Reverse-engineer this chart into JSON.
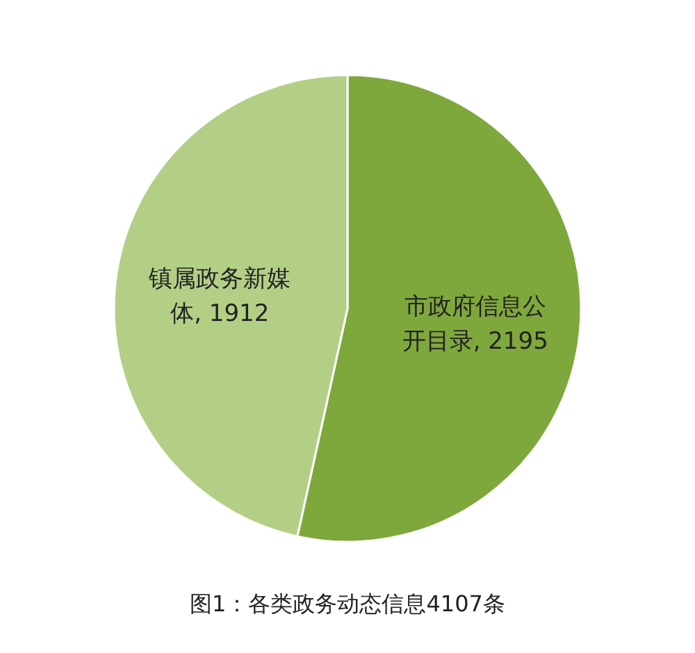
{
  "chart_data": {
    "type": "pie",
    "title": "图1：各类政务动态信息4107条",
    "categories": [
      "市政府信息公开目录",
      "镇属政务新媒体"
    ],
    "values": [
      2195,
      1912
    ],
    "colors": [
      "#7fa83c",
      "#b3cf86"
    ],
    "value_labels": [
      ", 2195",
      ", 1912"
    ]
  }
}
